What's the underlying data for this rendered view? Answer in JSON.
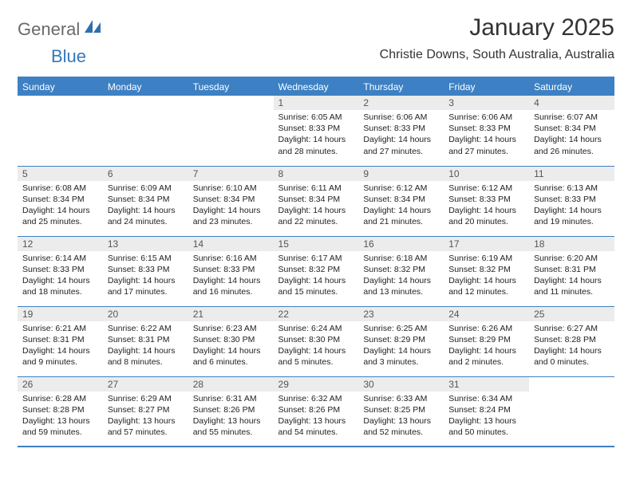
{
  "logo": {
    "general": "General",
    "blue": "Blue"
  },
  "title": "January 2025",
  "location": "Christie Downs, South Australia, Australia",
  "colors": {
    "header_bg": "#3d80c3",
    "header_text": "#ffffff",
    "daynum_bg": "#ececec",
    "rule": "#3d80c3",
    "logo_gray": "#6a6a6a",
    "logo_blue": "#3478bd"
  },
  "weekdays": [
    "Sunday",
    "Monday",
    "Tuesday",
    "Wednesday",
    "Thursday",
    "Friday",
    "Saturday"
  ],
  "weeks": [
    [
      null,
      null,
      null,
      {
        "n": "1",
        "sunrise": "6:05 AM",
        "sunset": "8:33 PM",
        "daylight": "14 hours and 28 minutes."
      },
      {
        "n": "2",
        "sunrise": "6:06 AM",
        "sunset": "8:33 PM",
        "daylight": "14 hours and 27 minutes."
      },
      {
        "n": "3",
        "sunrise": "6:06 AM",
        "sunset": "8:33 PM",
        "daylight": "14 hours and 27 minutes."
      },
      {
        "n": "4",
        "sunrise": "6:07 AM",
        "sunset": "8:34 PM",
        "daylight": "14 hours and 26 minutes."
      }
    ],
    [
      {
        "n": "5",
        "sunrise": "6:08 AM",
        "sunset": "8:34 PM",
        "daylight": "14 hours and 25 minutes."
      },
      {
        "n": "6",
        "sunrise": "6:09 AM",
        "sunset": "8:34 PM",
        "daylight": "14 hours and 24 minutes."
      },
      {
        "n": "7",
        "sunrise": "6:10 AM",
        "sunset": "8:34 PM",
        "daylight": "14 hours and 23 minutes."
      },
      {
        "n": "8",
        "sunrise": "6:11 AM",
        "sunset": "8:34 PM",
        "daylight": "14 hours and 22 minutes."
      },
      {
        "n": "9",
        "sunrise": "6:12 AM",
        "sunset": "8:34 PM",
        "daylight": "14 hours and 21 minutes."
      },
      {
        "n": "10",
        "sunrise": "6:12 AM",
        "sunset": "8:33 PM",
        "daylight": "14 hours and 20 minutes."
      },
      {
        "n": "11",
        "sunrise": "6:13 AM",
        "sunset": "8:33 PM",
        "daylight": "14 hours and 19 minutes."
      }
    ],
    [
      {
        "n": "12",
        "sunrise": "6:14 AM",
        "sunset": "8:33 PM",
        "daylight": "14 hours and 18 minutes."
      },
      {
        "n": "13",
        "sunrise": "6:15 AM",
        "sunset": "8:33 PM",
        "daylight": "14 hours and 17 minutes."
      },
      {
        "n": "14",
        "sunrise": "6:16 AM",
        "sunset": "8:33 PM",
        "daylight": "14 hours and 16 minutes."
      },
      {
        "n": "15",
        "sunrise": "6:17 AM",
        "sunset": "8:32 PM",
        "daylight": "14 hours and 15 minutes."
      },
      {
        "n": "16",
        "sunrise": "6:18 AM",
        "sunset": "8:32 PM",
        "daylight": "14 hours and 13 minutes."
      },
      {
        "n": "17",
        "sunrise": "6:19 AM",
        "sunset": "8:32 PM",
        "daylight": "14 hours and 12 minutes."
      },
      {
        "n": "18",
        "sunrise": "6:20 AM",
        "sunset": "8:31 PM",
        "daylight": "14 hours and 11 minutes."
      }
    ],
    [
      {
        "n": "19",
        "sunrise": "6:21 AM",
        "sunset": "8:31 PM",
        "daylight": "14 hours and 9 minutes."
      },
      {
        "n": "20",
        "sunrise": "6:22 AM",
        "sunset": "8:31 PM",
        "daylight": "14 hours and 8 minutes."
      },
      {
        "n": "21",
        "sunrise": "6:23 AM",
        "sunset": "8:30 PM",
        "daylight": "14 hours and 6 minutes."
      },
      {
        "n": "22",
        "sunrise": "6:24 AM",
        "sunset": "8:30 PM",
        "daylight": "14 hours and 5 minutes."
      },
      {
        "n": "23",
        "sunrise": "6:25 AM",
        "sunset": "8:29 PM",
        "daylight": "14 hours and 3 minutes."
      },
      {
        "n": "24",
        "sunrise": "6:26 AM",
        "sunset": "8:29 PM",
        "daylight": "14 hours and 2 minutes."
      },
      {
        "n": "25",
        "sunrise": "6:27 AM",
        "sunset": "8:28 PM",
        "daylight": "14 hours and 0 minutes."
      }
    ],
    [
      {
        "n": "26",
        "sunrise": "6:28 AM",
        "sunset": "8:28 PM",
        "daylight": "13 hours and 59 minutes."
      },
      {
        "n": "27",
        "sunrise": "6:29 AM",
        "sunset": "8:27 PM",
        "daylight": "13 hours and 57 minutes."
      },
      {
        "n": "28",
        "sunrise": "6:31 AM",
        "sunset": "8:26 PM",
        "daylight": "13 hours and 55 minutes."
      },
      {
        "n": "29",
        "sunrise": "6:32 AM",
        "sunset": "8:26 PM",
        "daylight": "13 hours and 54 minutes."
      },
      {
        "n": "30",
        "sunrise": "6:33 AM",
        "sunset": "8:25 PM",
        "daylight": "13 hours and 52 minutes."
      },
      {
        "n": "31",
        "sunrise": "6:34 AM",
        "sunset": "8:24 PM",
        "daylight": "13 hours and 50 minutes."
      },
      null
    ]
  ],
  "labels": {
    "sunrise": "Sunrise:",
    "sunset": "Sunset:",
    "daylight": "Daylight:"
  }
}
